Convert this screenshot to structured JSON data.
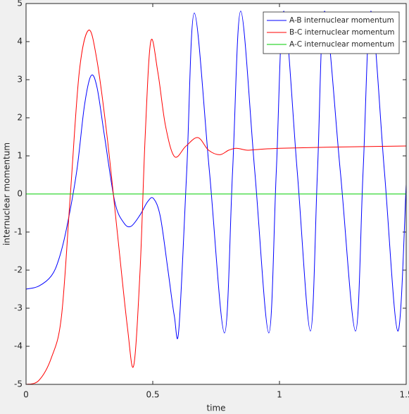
{
  "chart_data": {
    "type": "line",
    "xlabel": "time",
    "ylabel": "internuclear momentum",
    "xlim": [
      0,
      1.5
    ],
    "xticks": [
      0,
      0.5,
      1,
      1.5
    ],
    "ylim": [
      -5,
      5
    ],
    "yticks": [
      5,
      4,
      3,
      2,
      1,
      0,
      -1,
      -2,
      -3,
      -4,
      -5
    ],
    "grid": false,
    "legend": "top-right",
    "series": [
      {
        "name": "A-B internuclear momentum",
        "color": "#0000ff",
        "x": [
          0,
          0.05,
          0.1,
          0.13,
          0.16,
          0.2,
          0.23,
          0.256,
          0.28,
          0.31,
          0.35,
          0.385,
          0.414,
          0.45,
          0.48,
          0.503,
          0.53,
          0.56,
          0.585,
          0.603,
          0.634,
          0.664,
          0.7235,
          0.783,
          0.815,
          0.847,
          0.9025,
          0.958,
          0.9875,
          1.017,
          1.07,
          1.122,
          1.15,
          1.178,
          1.24,
          1.3,
          1.33,
          1.361,
          1.414,
          1.467,
          1.5
        ],
        "values": [
          -2.5,
          -2.42,
          -2.15,
          -1.7,
          -0.9,
          0.6,
          2.3,
          3.1,
          2.8,
          1.5,
          -0.2,
          -0.75,
          -0.85,
          -0.55,
          -0.2,
          -0.12,
          -0.6,
          -2.0,
          -3.2,
          -3.55,
          0.6,
          4.75,
          0.6,
          -3.65,
          0.6,
          4.8,
          0.6,
          -3.65,
          0.6,
          4.8,
          0.6,
          -3.6,
          0.6,
          4.8,
          0.6,
          -3.6,
          0.6,
          4.8,
          0.6,
          -3.6,
          0.25
        ]
      },
      {
        "name": "B-C internuclear momentum",
        "color": "#ff0000",
        "x": [
          0,
          0.05,
          0.1,
          0.14,
          0.175,
          0.21,
          0.247,
          0.28,
          0.32,
          0.36,
          0.4,
          0.425,
          0.45,
          0.47,
          0.492,
          0.52,
          0.55,
          0.586,
          0.63,
          0.678,
          0.72,
          0.764,
          0.8,
          0.83,
          0.87,
          0.9,
          1.0,
          1.2,
          1.5
        ],
        "values": [
          -5,
          -4.9,
          -4.3,
          -3.2,
          0,
          3.2,
          4.3,
          3.5,
          1.5,
          -1,
          -3.5,
          -4.5,
          -2,
          1.5,
          4.0,
          3.2,
          1.8,
          0.98,
          1.25,
          1.48,
          1.15,
          1.03,
          1.15,
          1.2,
          1.15,
          1.16,
          1.2,
          1.23,
          1.26
        ]
      },
      {
        "name": "A-C internuclear momentum",
        "color": "#00cc00",
        "x": [
          0,
          1.5
        ],
        "values": [
          0,
          0
        ]
      }
    ]
  }
}
